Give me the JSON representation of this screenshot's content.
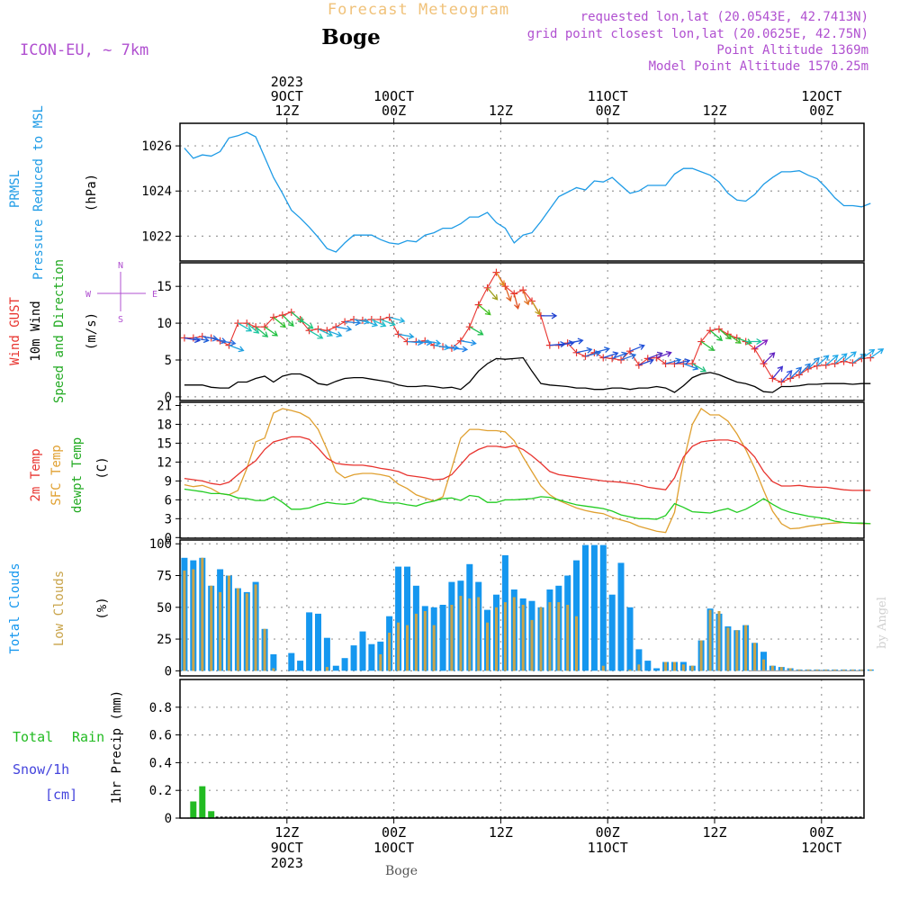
{
  "header": {
    "title": "Forecast Meteogram",
    "location": "Boge",
    "model": "ICON-EU, ~ 7km",
    "requested": "requested lon,lat (20.0543E, 42.7413N)",
    "grid_point": "grid point closest lon,lat (20.0625E, 42.75N)",
    "point_altitude": "Point Altitude 1369m",
    "model_altitude": "Model Point Altitude 1570.25m"
  },
  "footer": {
    "location": "Boge",
    "watermark": "by Angel"
  },
  "colors": {
    "pressure": "#1e9be6",
    "gust": "#e8342f",
    "wind": "#000000",
    "temp": "#e8342f",
    "sfc": "#e0a030",
    "dew": "#22cc22",
    "total_cloud": "#1597ef",
    "low_cloud": "#c9a44a",
    "rain": "#22bb22",
    "snow": "#4444dd",
    "title": "#f0c27a",
    "meta": "#b050d0"
  },
  "time_axis": {
    "top_ticks": [
      {
        "h": 12,
        "lines": [
          "2023",
          "9OCT",
          "12Z"
        ]
      },
      {
        "h": 24,
        "lines": [
          "10OCT",
          "00Z"
        ]
      },
      {
        "h": 36,
        "lines": [
          "12Z"
        ]
      },
      {
        "h": 48,
        "lines": [
          "11OCT",
          "00Z"
        ]
      },
      {
        "h": 60,
        "lines": [
          "12Z"
        ]
      },
      {
        "h": 72,
        "lines": [
          "12OCT",
          "00Z"
        ]
      }
    ],
    "bottom_ticks": [
      {
        "h": 12,
        "lines": [
          "12Z",
          "9OCT",
          "2023"
        ]
      },
      {
        "h": 24,
        "lines": [
          "00Z",
          "10OCT"
        ]
      },
      {
        "h": 36,
        "lines": [
          "12Z"
        ]
      },
      {
        "h": 48,
        "lines": [
          "00Z",
          "11OCT"
        ]
      },
      {
        "h": 60,
        "lines": [
          "12Z"
        ]
      },
      {
        "h": 72,
        "lines": [
          "00Z",
          "12OCT"
        ]
      }
    ]
  },
  "chart_data": [
    {
      "type": "line",
      "panel": "pressure",
      "title": "PRMSL Pressure Reduced to MSL",
      "ylabel_a": "PRMSL",
      "ylabel_b": "Pressure Reduced to MSL",
      "unit": "(hPa)",
      "ylim": [
        1020.9,
        1027.0
      ],
      "yticks": [
        1022,
        1024,
        1026
      ],
      "x_start": 0.5,
      "step": 1,
      "values": [
        1025.9,
        1025.45,
        1025.6,
        1025.55,
        1025.75,
        1026.35,
        1026.45,
        1026.6,
        1026.4,
        1025.5,
        1024.6,
        1023.9,
        1023.15,
        1022.8,
        1022.4,
        1021.95,
        1021.45,
        1021.3,
        1021.7,
        1022.05,
        1022.05,
        1022.05,
        1021.85,
        1021.7,
        1021.65,
        1021.8,
        1021.75,
        1022.05,
        1022.15,
        1022.35,
        1022.35,
        1022.55,
        1022.85,
        1022.85,
        1023.05,
        1022.6,
        1022.35,
        1021.7,
        1022.05,
        1022.15,
        1022.65,
        1023.2,
        1023.75,
        1023.95,
        1024.15,
        1024.05,
        1024.45,
        1024.4,
        1024.6,
        1024.25,
        1023.9,
        1024.0,
        1024.25,
        1024.25,
        1024.25,
        1024.75,
        1025.0,
        1025.0,
        1024.85,
        1024.7,
        1024.4,
        1023.9,
        1023.6,
        1023.55,
        1023.85,
        1024.3,
        1024.6,
        1024.85,
        1024.85,
        1024.9,
        1024.7,
        1024.55,
        1024.15,
        1023.7,
        1023.35,
        1023.35,
        1023.3,
        1023.45
      ]
    },
    {
      "type": "line",
      "panel": "wind",
      "title": "Wind GUST / 10m Wind Speed and Direction",
      "ylabel_a": "Wind GUST",
      "ylabel_b": "10m Wind",
      "ylabel_c": "Speed and Direction",
      "unit": "(m/s)",
      "compass": {
        "n": "N",
        "s": "S",
        "w": "W",
        "e": "E"
      },
      "ylim": [
        -0.5,
        18.2
      ],
      "yticks": [
        0,
        5,
        10,
        15
      ],
      "gust": {
        "x": [
          0.5,
          1.5,
          2.5,
          3.5,
          4.5,
          5.5,
          6.5,
          7.5,
          8.5,
          9.5,
          10.5,
          11.5,
          12.5,
          13.5,
          14.5,
          15.5,
          16.5,
          17.5,
          18.5,
          19.5,
          20.5,
          21.5,
          22.5,
          23.5,
          24.5,
          25.5,
          26.5,
          27.5,
          28.5,
          29.5,
          30.5,
          31.5,
          32.5,
          33.5,
          34.5,
          35.5,
          36.5,
          37.5,
          38.5,
          39.5,
          40.5,
          41.5,
          42.5,
          43.5,
          44.5,
          45.5,
          46.5,
          47.5,
          48.5,
          49.5,
          50.5,
          51.5,
          52.5,
          53.5,
          54.5,
          55.5,
          56.5,
          57.5,
          58.5,
          59.5,
          60.5,
          61.5,
          62.5,
          63.5,
          64.5,
          65.5,
          66.5,
          67.5,
          68.5,
          69.5,
          70.5,
          71.5,
          72.5,
          73.5,
          74.5,
          75.5,
          76.5,
          77.5
        ],
        "values": [
          8.0,
          8.0,
          8.2,
          8.0,
          7.6,
          7.0,
          10.0,
          10.0,
          9.5,
          9.5,
          10.8,
          11.1,
          11.5,
          10.5,
          9.0,
          9.2,
          9.0,
          9.5,
          10.2,
          10.5,
          10.4,
          10.5,
          10.5,
          10.8,
          8.5,
          7.5,
          7.5,
          7.6,
          7.0,
          6.8,
          6.6,
          7.6,
          9.5,
          12.5,
          14.8,
          16.9,
          15.0,
          14.0,
          14.5,
          13.0,
          11.0,
          7.0,
          7.0,
          7.3,
          6.0,
          5.5,
          6.0,
          5.3,
          5.2,
          5.0,
          6.2,
          4.3,
          5.2,
          5.3,
          4.5,
          4.5,
          4.5,
          4.5,
          7.5,
          9.0,
          9.2,
          8.5,
          8.0,
          7.5,
          6.5,
          4.5,
          2.5,
          2.0,
          2.5,
          3.0,
          3.8,
          4.2,
          4.3,
          4.5,
          4.8,
          4.6,
          5.2,
          5.3
        ]
      },
      "wind": {
        "x_start": 0.5,
        "step": 1,
        "values": [
          1.6,
          1.6,
          1.6,
          1.3,
          1.2,
          1.2,
          2.0,
          2.0,
          2.5,
          2.8,
          2.0,
          2.8,
          3.1,
          3.1,
          2.6,
          1.8,
          1.6,
          2.1,
          2.5,
          2.6,
          2.6,
          2.4,
          2.2,
          2.0,
          1.6,
          1.4,
          1.4,
          1.5,
          1.4,
          1.2,
          1.3,
          1.0,
          2.0,
          3.5,
          4.5,
          5.2,
          5.1,
          5.2,
          5.3,
          3.5,
          1.8,
          1.6,
          1.5,
          1.4,
          1.2,
          1.2,
          1.0,
          1.0,
          1.2,
          1.2,
          1.0,
          1.2,
          1.2,
          1.4,
          1.2,
          0.6,
          1.5,
          2.6,
          3.1,
          3.3,
          3.0,
          2.5,
          2.0,
          1.8,
          1.4,
          0.7,
          0.6,
          1.4,
          1.4,
          1.5,
          1.7,
          1.7,
          1.8,
          1.8,
          1.8,
          1.7,
          1.8,
          1.8
        ]
      },
      "arrows": {
        "hours": [
          0.5,
          1.5,
          2.5,
          3.5,
          4.5,
          5.5,
          6.5,
          7.5,
          8.5,
          9.5,
          10.5,
          11.5,
          12.5,
          13.5,
          14.5,
          15.5,
          16.5,
          17.5,
          18.5,
          19.5,
          20.5,
          21.5,
          22.5,
          23.5,
          24.5,
          25.5,
          26.5,
          27.5,
          28.5,
          29.5,
          30.5,
          31.5,
          32.5,
          33.5,
          34.5,
          35.5,
          36.5,
          37.5,
          38.5,
          39.5,
          40.5,
          41.5,
          42.5,
          43.5,
          44.5,
          45.5,
          46.5,
          47.5,
          48.5,
          49.5,
          50.5,
          51.5,
          52.5,
          53.5,
          54.5,
          55.5,
          56.5,
          57.5,
          58.5,
          59.5,
          60.5,
          61.5,
          62.5,
          63.5,
          64.5,
          65.5,
          66.5,
          67.5,
          68.5,
          69.5,
          70.5,
          71.5,
          72.5,
          73.5,
          74.5,
          75.5,
          76.5,
          77.5
        ],
        "to_deg": [
          100,
          100,
          100,
          105,
          100,
          110,
          120,
          130,
          130,
          125,
          130,
          135,
          130,
          125,
          120,
          115,
          110,
          100,
          95,
          100,
          110,
          115,
          110,
          105,
          100,
          95,
          95,
          100,
          100,
          95,
          95,
          100,
          120,
          130,
          140,
          150,
          160,
          165,
          160,
          150,
          90,
          85,
          80,
          80,
          78,
          75,
          75,
          72,
          70,
          70,
          68,
          70,
          70,
          70,
          75,
          78,
          110,
          120,
          125,
          130,
          130,
          125,
          110,
          90,
          55,
          45,
          40,
          42,
          45,
          45,
          45,
          48,
          50,
          50,
          52,
          55,
          55,
          55
        ],
        "colors": [
          "#2040d0",
          "#2060d8",
          "#2a6ee0",
          "#2060d8",
          "#2a6ee0",
          "#20a0e0",
          "#20c0c0",
          "#20c8a0",
          "#20c060",
          "#20c040",
          "#30c030",
          "#20c040",
          "#20c060",
          "#20c880",
          "#20c8a8",
          "#20b8c8",
          "#20a8e0",
          "#2090e0",
          "#2080e0",
          "#2aa0e0",
          "#20b0e0",
          "#20c0d0",
          "#20c0c0",
          "#20b0e0",
          "#20a0e0",
          "#2090e8",
          "#2090e8",
          "#20a0e8",
          "#20a0e8",
          "#2090e8",
          "#2080e8",
          "#2090e8",
          "#20c050",
          "#40c020",
          "#a0a020",
          "#e09020",
          "#e06020",
          "#e05020",
          "#e07020",
          "#c0a020",
          "#2040d0",
          "#2050d8",
          "#2040d0",
          "#2050d8",
          "#2060d8",
          "#2070e0",
          "#2060d8",
          "#2050d8",
          "#2060d8",
          "#2070e0",
          "#2050d8",
          "#2040d0",
          "#5030c0",
          "#6020c0",
          "#2070e0",
          "#2050d8",
          "#2080e0",
          "#20c080",
          "#30c040",
          "#20c040",
          "#30c030",
          "#40c030",
          "#20c060",
          "#20c0a0",
          "#8020c0",
          "#6020c0",
          "#4030d0",
          "#3050e0",
          "#2070e0",
          "#2080e0",
          "#2090e0",
          "#20a0e8",
          "#20a8e8",
          "#20a8e8",
          "#20a8e8",
          "#20a8e8",
          "#20a8e8",
          "#20a8e8"
        ]
      }
    },
    {
      "type": "line",
      "panel": "temperature",
      "title": "2m Temp / SFC Temp / dewpt Temp",
      "ylabel_a": "2m Temp",
      "ylabel_b": "SFC Temp",
      "ylabel_c": "dewpt Temp",
      "unit": "(C)",
      "ylim": [
        -0.1,
        21.5
      ],
      "yticks": [
        0,
        3,
        6,
        9,
        12,
        15,
        18,
        21
      ],
      "x_start": 0.5,
      "step": 1,
      "t2m": [
        9.4,
        9.2,
        9.0,
        8.6,
        8.4,
        8.8,
        10.0,
        11.2,
        12.2,
        14.0,
        15.2,
        15.6,
        16.0,
        16.0,
        15.6,
        14.2,
        12.6,
        11.8,
        11.6,
        11.5,
        11.5,
        11.3,
        11.0,
        10.8,
        10.5,
        9.9,
        9.7,
        9.5,
        9.2,
        9.3,
        10.0,
        11.6,
        13.2,
        14.0,
        14.5,
        14.5,
        14.3,
        14.6,
        14.0,
        13.0,
        11.8,
        10.5,
        10.0,
        9.8,
        9.6,
        9.4,
        9.2,
        9.0,
        8.9,
        8.8,
        8.6,
        8.4,
        8.0,
        7.8,
        7.6,
        9.5,
        12.8,
        14.5,
        15.2,
        15.4,
        15.5,
        15.5,
        15.2,
        14.3,
        12.8,
        10.5,
        8.9,
        8.2,
        8.2,
        8.3,
        8.1,
        8.0,
        8.0,
        7.8,
        7.6,
        7.5,
        7.5,
        7.5
      ],
      "sfc": [
        8.4,
        8.1,
        8.3,
        7.8,
        7.0,
        6.8,
        7.5,
        11.0,
        15.2,
        15.8,
        19.8,
        20.5,
        20.2,
        19.8,
        19.0,
        17.2,
        14.0,
        10.5,
        9.5,
        10.0,
        10.2,
        10.2,
        10.0,
        9.7,
        8.5,
        7.8,
        6.8,
        6.3,
        5.8,
        6.5,
        11.0,
        15.8,
        17.2,
        17.2,
        17.0,
        17.0,
        16.8,
        15.4,
        12.8,
        10.5,
        8.2,
        6.8,
        5.9,
        5.3,
        4.7,
        4.3,
        4.0,
        3.8,
        3.2,
        2.8,
        2.4,
        1.8,
        1.4,
        1.0,
        0.8,
        4.0,
        12.0,
        18.0,
        20.5,
        19.5,
        19.5,
        18.5,
        16.5,
        14.0,
        11.0,
        7.5,
        4.2,
        2.2,
        1.4,
        1.5,
        1.8,
        2.0,
        2.2,
        2.3,
        2.4,
        2.3,
        2.2,
        2.2
      ],
      "dew": [
        7.7,
        7.5,
        7.3,
        7.0,
        7.0,
        6.8,
        6.3,
        6.2,
        5.9,
        5.9,
        6.5,
        5.6,
        4.5,
        4.5,
        4.7,
        5.2,
        5.6,
        5.4,
        5.3,
        5.5,
        6.3,
        6.1,
        5.7,
        5.5,
        5.5,
        5.2,
        5.0,
        5.5,
        5.8,
        6.2,
        6.3,
        5.9,
        6.7,
        6.5,
        5.6,
        5.6,
        6.0,
        6.0,
        6.1,
        6.2,
        6.5,
        6.4,
        6.0,
        5.6,
        5.2,
        5.0,
        4.8,
        4.6,
        4.2,
        3.6,
        3.3,
        3.0,
        3.0,
        2.9,
        3.5,
        5.4,
        4.8,
        4.1,
        4.0,
        3.9,
        4.3,
        4.6,
        4.0,
        4.5,
        5.3,
        6.2,
        5.3,
        4.5,
        4.0,
        3.7,
        3.4,
        3.2,
        3.0,
        2.6,
        2.4,
        2.3,
        2.3,
        2.2
      ]
    },
    {
      "type": "bar",
      "panel": "clouds",
      "title": "Total Clouds / Low Clouds",
      "ylabel_a": "Total Clouds",
      "ylabel_b": "Low Clouds",
      "unit": "(%)",
      "ylim": [
        -4,
        103
      ],
      "yticks": [
        0,
        25,
        50,
        75,
        100
      ],
      "x_start": 0.5,
      "step": 1,
      "total": [
        89,
        87,
        89,
        67,
        80,
        75,
        65,
        62,
        70,
        33,
        13,
        0,
        14,
        8,
        46,
        45,
        26,
        4,
        10,
        20,
        31,
        21,
        23,
        43,
        82,
        82,
        67,
        51,
        50,
        52,
        70,
        71,
        84,
        70,
        48,
        60,
        91,
        64,
        57,
        55,
        50,
        64,
        67,
        75,
        87,
        99,
        99,
        99,
        60,
        85,
        50,
        17,
        8,
        2,
        7,
        7,
        7,
        4,
        24,
        49,
        45,
        35,
        32,
        36,
        22,
        15,
        4,
        3,
        2,
        1,
        1,
        1,
        1,
        1,
        1,
        1,
        1,
        1
      ],
      "low": [
        79,
        80,
        89,
        67,
        62,
        75,
        65,
        61,
        68,
        33,
        2,
        0,
        0,
        0,
        0,
        0,
        3,
        0,
        0,
        0,
        0,
        0,
        13,
        30,
        38,
        36,
        45,
        47,
        36,
        0,
        52,
        59,
        57,
        58,
        38,
        50,
        54,
        58,
        52,
        40,
        50,
        54,
        54,
        52,
        43,
        0,
        0,
        4,
        0,
        0,
        1,
        5,
        0,
        0,
        7,
        7,
        5,
        4,
        24,
        48,
        47,
        34,
        32,
        36,
        22,
        9,
        4,
        3,
        2,
        1,
        1,
        1,
        1,
        1,
        1,
        1,
        1,
        1
      ]
    },
    {
      "type": "bar",
      "panel": "precip",
      "title": "1hr Precip (mm)",
      "ylabel_total": "Total",
      "ylabel_rain": "Rain",
      "ylabel_snow": "Snow/1h",
      "ylabel_cm": "[cm]",
      "unit": "1hr Precip (mm)",
      "ylim": [
        0,
        1.0
      ],
      "yticks": [
        0,
        0.2,
        0.4,
        0.6,
        0.8
      ],
      "ytick_labels": [
        "0",
        "0.2",
        "0.4",
        "0.6",
        "0.8"
      ],
      "x_start": 0.5,
      "step": 1,
      "rain": [
        0,
        0.12,
        0.23,
        0.05,
        0,
        0,
        0,
        0,
        0,
        0,
        0,
        0,
        0,
        0,
        0,
        0,
        0,
        0,
        0,
        0,
        0,
        0,
        0,
        0,
        0,
        0,
        0,
        0,
        0,
        0,
        0,
        0,
        0,
        0,
        0,
        0,
        0,
        0,
        0,
        0,
        0,
        0,
        0,
        0,
        0,
        0,
        0,
        0,
        0,
        0,
        0,
        0,
        0,
        0,
        0,
        0,
        0,
        0,
        0,
        0,
        0,
        0,
        0,
        0,
        0,
        0,
        0,
        0,
        0,
        0,
        0,
        0,
        0,
        0,
        0,
        0,
        0,
        0
      ]
    }
  ]
}
